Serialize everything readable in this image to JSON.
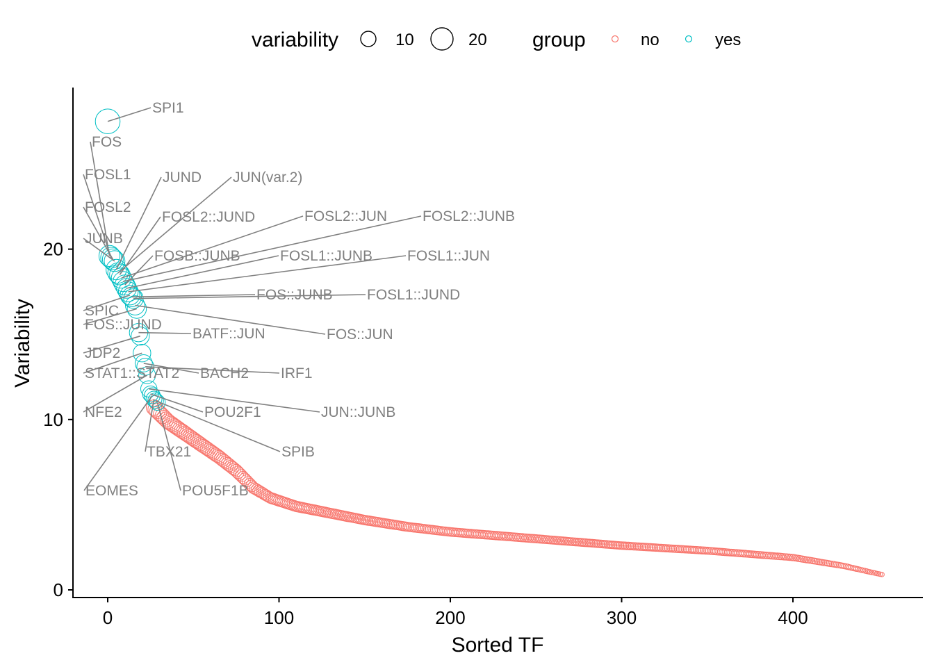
{
  "chart_data": {
    "type": "scatter",
    "xlabel": "Sorted TF",
    "ylabel": "Variability",
    "xlim": [
      -20,
      475
    ],
    "ylim": [
      -0.5,
      29.5
    ],
    "xticks": [
      0,
      100,
      200,
      300,
      400
    ],
    "yticks": [
      0,
      10,
      20
    ],
    "n_points": 453,
    "legend": {
      "placement": "top",
      "size_title": "variability",
      "size_entries": [
        {
          "label": "10",
          "value": 10
        },
        {
          "label": "20",
          "value": 20
        }
      ],
      "color_title": "group",
      "color_entries": [
        {
          "label": "no",
          "color": "#F8766D"
        },
        {
          "label": "yes",
          "color": "#00BFC4"
        }
      ]
    },
    "curve_anchors": [
      [
        27,
        10.7
      ],
      [
        35,
        9.9
      ],
      [
        45,
        9.2
      ],
      [
        55,
        8.5
      ],
      [
        65,
        7.8
      ],
      [
        75,
        7.0
      ],
      [
        85,
        6.0
      ],
      [
        95,
        5.4
      ],
      [
        110,
        4.9
      ],
      [
        130,
        4.5
      ],
      [
        150,
        4.1
      ],
      [
        175,
        3.7
      ],
      [
        200,
        3.4
      ],
      [
        250,
        3.0
      ],
      [
        300,
        2.6
      ],
      [
        350,
        2.3
      ],
      [
        400,
        1.9
      ],
      [
        430,
        1.4
      ],
      [
        445,
        1.05
      ],
      [
        452,
        0.9
      ]
    ],
    "labeled": [
      {
        "name": "SPI1",
        "rank": 1,
        "y": 27.5
      },
      {
        "name": "FOS",
        "rank": 2,
        "y": 19.6
      },
      {
        "name": "FOSL1",
        "rank": 3,
        "y": 19.5
      },
      {
        "name": "FOSL2",
        "rank": 4,
        "y": 19.4
      },
      {
        "name": "JUNB",
        "rank": 5,
        "y": 19.3
      },
      {
        "name": "JUND",
        "rank": 6,
        "y": 18.8
      },
      {
        "name": "JUN(var.2)",
        "rank": 7,
        "y": 18.6
      },
      {
        "name": "FOSL2::JUND",
        "rank": 8,
        "y": 18.5
      },
      {
        "name": "FOSL2::JUN",
        "rank": 9,
        "y": 18.3
      },
      {
        "name": "FOSL2::JUNB",
        "rank": 10,
        "y": 18.1
      },
      {
        "name": "FOSB::JUNB",
        "rank": 11,
        "y": 17.9
      },
      {
        "name": "FOSL1::JUNB",
        "rank": 12,
        "y": 17.7
      },
      {
        "name": "FOSL1::JUN",
        "rank": 13,
        "y": 17.5
      },
      {
        "name": "SPIC",
        "rank": 14,
        "y": 17.3
      },
      {
        "name": "FOS::JUNB",
        "rank": 15,
        "y": 17.2
      },
      {
        "name": "FOSL1::JUND",
        "rank": 16,
        "y": 17.1
      },
      {
        "name": "FOS::JUN",
        "rank": 17,
        "y": 16.7
      },
      {
        "name": "FOS::JUND",
        "rank": 18,
        "y": 16.5
      },
      {
        "name": "BATF::JUN",
        "rank": 19,
        "y": 15.1
      },
      {
        "name": "JDP2",
        "rank": 20,
        "y": 14.9
      },
      {
        "name": "STAT1::STAT2",
        "rank": 21,
        "y": 13.9
      },
      {
        "name": "BACH2",
        "rank": 22,
        "y": 13.3
      },
      {
        "name": "IRF1",
        "rank": 23,
        "y": 13.1
      },
      {
        "name": "NFE2",
        "rank": 24,
        "y": 12.6
      },
      {
        "name": "JUN::JUNB",
        "rank": 25,
        "y": 11.8
      },
      {
        "name": "POU2F1",
        "rank": 26,
        "y": 11.5
      },
      {
        "name": "EOMES",
        "rank": 27,
        "y": 11.4
      },
      {
        "name": "TBX21",
        "rank": 28,
        "y": 11.2
      },
      {
        "name": "SPIB",
        "rank": 29,
        "y": 11.1
      },
      {
        "name": "POU5F1B",
        "rank": 30,
        "y": 11.0
      }
    ]
  }
}
